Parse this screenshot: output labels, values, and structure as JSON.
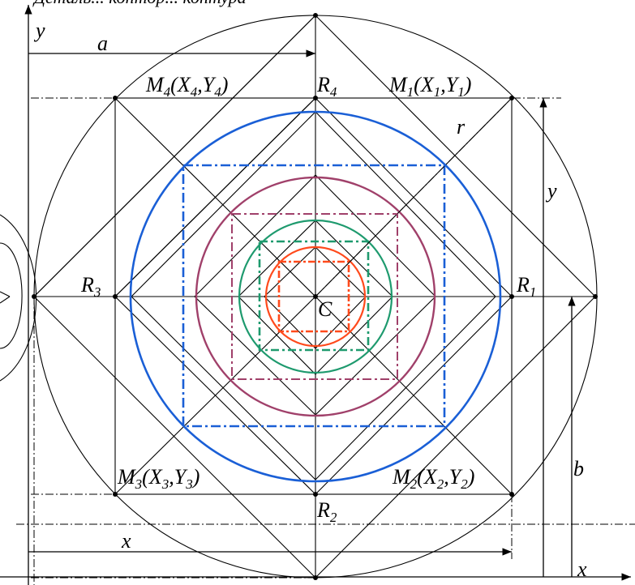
{
  "labels": {
    "top_caption": "Деталь... контор... контура",
    "a": "a",
    "b": "b",
    "r": "r",
    "x_dim": "x",
    "y_dim": "y",
    "y_axis": "y",
    "x_axis": "x",
    "center": "C",
    "m4": {
      "main": "M",
      "sub": "4",
      "open": "(X",
      "sub2": "4",
      "mid": ",Y",
      "sub3": "4",
      "close": ")"
    },
    "m1": {
      "main": "M",
      "sub": "1",
      "open": "(X",
      "sub2": "1",
      "mid": ",Y",
      "sub3": "1",
      "close": ")"
    },
    "m3": {
      "main": "M",
      "sub": "3",
      "open": "(X",
      "sub2": "3",
      "mid": ",Y",
      "sub3": "3",
      "close": ")"
    },
    "m2": {
      "main": "M",
      "sub": "2",
      "open": "(X",
      "sub2": "2",
      "mid": ",Y",
      "sub3": "2",
      "close": ")"
    },
    "r1": {
      "main": "R",
      "sub": "1"
    },
    "r2": {
      "main": "R",
      "sub": "2"
    },
    "r3": {
      "main": "R",
      "sub": "3"
    },
    "r4": {
      "main": "R",
      "sub": "4"
    }
  },
  "colors": {
    "blue": "#1a5fd6",
    "purple": "#a0406a",
    "green": "#1e9a6e",
    "orange": "#ff4a1c",
    "black": "#000000"
  }
}
